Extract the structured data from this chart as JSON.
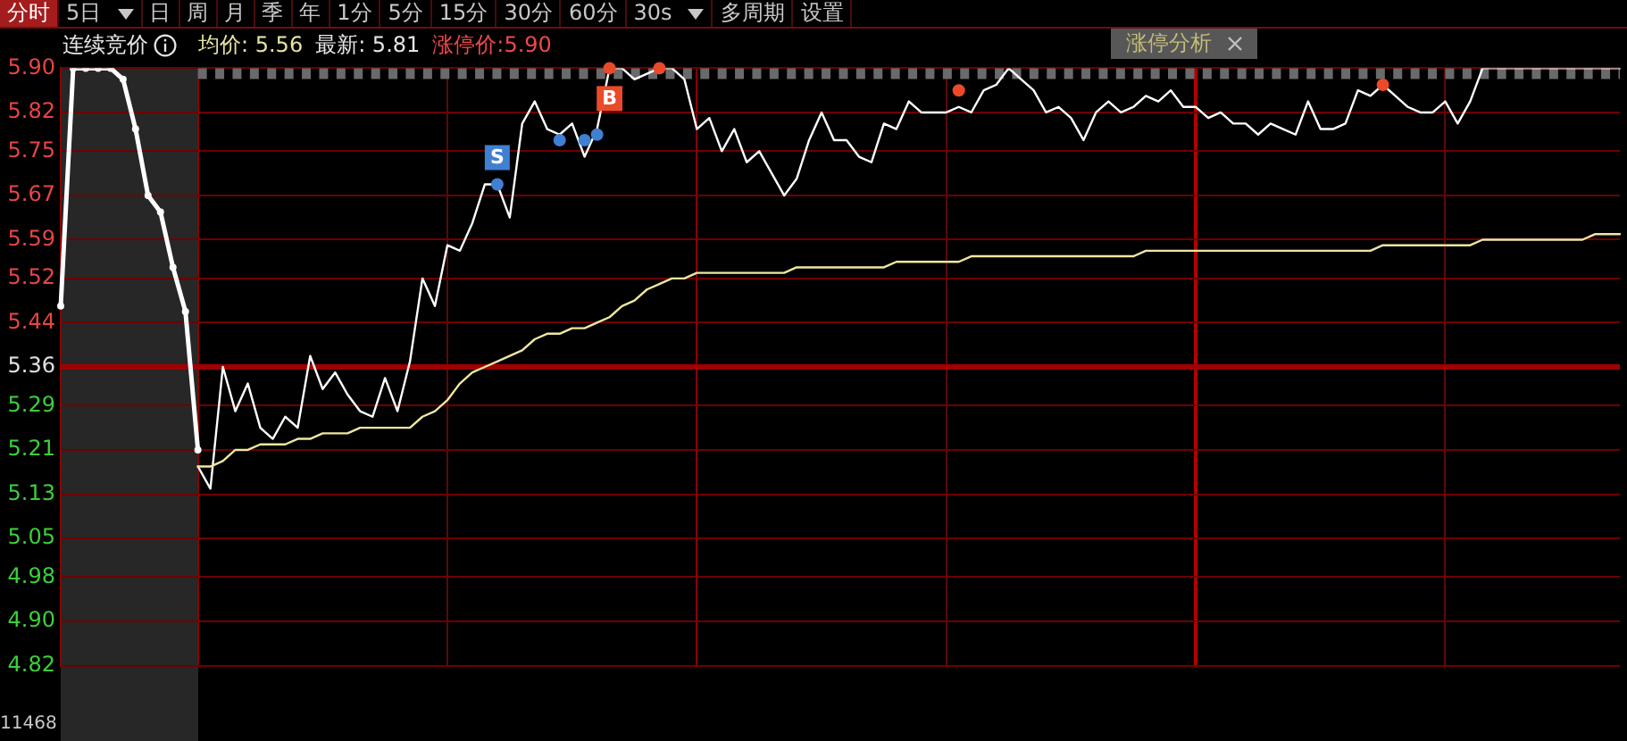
{
  "chart_data": {
    "type": "line",
    "categories": [
      null,
      null,
      null,
      null,
      null,
      null,
      null,
      null,
      null,
      null,
      null,
      null,
      null,
      null,
      null,
      null,
      null,
      null,
      null,
      null,
      null,
      null,
      null,
      null,
      null,
      null,
      null,
      null,
      null,
      null,
      null,
      null,
      null,
      null,
      null,
      null,
      null,
      null,
      null,
      null,
      null,
      null,
      null,
      null,
      null,
      null,
      null,
      null,
      null,
      null,
      null,
      null,
      null,
      null,
      null,
      null,
      null,
      null,
      null,
      null,
      null,
      null,
      null,
      null,
      null,
      null,
      null,
      null,
      null,
      null,
      null,
      null,
      null,
      null,
      null,
      null,
      null,
      null,
      null,
      null,
      null,
      null,
      null,
      null,
      null,
      null,
      null,
      null,
      null,
      null,
      null,
      null,
      null,
      null,
      null,
      null,
      null,
      null,
      null,
      null,
      null,
      null,
      null,
      null,
      null,
      null,
      null,
      null,
      null,
      null,
      null,
      null,
      null,
      null,
      null,
      null,
      null,
      null,
      null,
      null,
      null,
      null,
      null,
      null,
      null,
      null
    ],
    "series": [
      {
        "color": "#ffffff",
        "marker": "circle",
        "values": [
          5.47,
          5.9,
          5.9,
          5.9,
          5.9,
          5.88,
          5.79,
          5.67,
          5.64,
          5.54,
          5.46,
          5.21,
          null,
          null,
          null,
          null,
          null,
          null,
          null,
          null,
          null,
          null,
          null,
          null,
          null,
          null,
          null,
          null,
          null,
          null,
          null,
          null,
          null,
          null,
          null,
          null,
          null,
          null,
          null,
          null,
          null,
          null,
          null,
          null,
          null,
          null,
          null,
          null,
          null,
          null,
          null,
          null,
          null,
          null,
          null,
          null,
          null,
          null,
          null,
          null,
          null,
          null,
          null,
          null,
          null,
          null,
          null,
          null,
          null,
          null,
          null,
          null,
          null,
          null,
          null,
          null,
          null,
          null,
          null,
          null,
          null,
          null,
          null,
          null,
          null,
          null,
          null,
          null,
          null,
          null,
          null,
          null,
          null,
          null,
          null,
          null,
          null,
          null,
          null,
          null,
          null,
          null,
          null,
          null,
          null,
          null,
          null,
          null,
          null,
          null,
          null,
          null,
          null,
          null,
          null,
          null,
          null,
          null,
          null,
          null,
          null,
          null,
          null,
          null,
          null,
          null
        ]
      },
      {
        "color": "#ffffff",
        "values": [
          null,
          null,
          null,
          null,
          null,
          null,
          null,
          null,
          null,
          null,
          null,
          5.18,
          5.14,
          5.36,
          5.28,
          5.33,
          5.25,
          5.23,
          5.27,
          5.25,
          5.38,
          5.32,
          5.35,
          5.31,
          5.28,
          5.27,
          5.34,
          5.28,
          5.37,
          5.52,
          5.47,
          5.58,
          5.57,
          5.62,
          5.69,
          5.69,
          5.63,
          5.8,
          5.84,
          5.79,
          5.78,
          5.8,
          5.74,
          5.79,
          5.9,
          5.9,
          5.88,
          5.89,
          5.9,
          5.9,
          5.88,
          5.79,
          5.81,
          5.75,
          5.79,
          5.73,
          5.75,
          5.71,
          5.67,
          5.7,
          5.77,
          5.82,
          5.77,
          5.77,
          5.74,
          5.73,
          5.8,
          5.79,
          5.84,
          5.82,
          5.82,
          5.82,
          5.83,
          5.82,
          5.86,
          5.87,
          5.9,
          5.88,
          5.86,
          5.82,
          5.83,
          5.81,
          5.77,
          5.82,
          5.84,
          5.82,
          5.83,
          5.85,
          5.84,
          5.86,
          5.83,
          5.83,
          5.81,
          5.82,
          5.8,
          5.8,
          5.78,
          5.8,
          5.79,
          5.78,
          5.84,
          5.79,
          5.79,
          5.8,
          5.86,
          5.85,
          5.87,
          5.85,
          5.83,
          5.82,
          5.82,
          5.84,
          5.8,
          5.84,
          5.9,
          5.9,
          5.9,
          5.9,
          5.9,
          5.9,
          5.9,
          5.9,
          5.9,
          5.9,
          5.9,
          5.9
        ]
      },
      {
        "color": "#f0e6a0",
        "values": [
          null,
          null,
          null,
          null,
          null,
          null,
          null,
          null,
          null,
          null,
          null,
          5.18,
          5.18,
          5.19,
          5.21,
          5.21,
          5.22,
          5.22,
          5.22,
          5.23,
          5.23,
          5.24,
          5.24,
          5.24,
          5.25,
          5.25,
          5.25,
          5.25,
          5.25,
          5.27,
          5.28,
          5.3,
          5.33,
          5.35,
          5.36,
          5.37,
          5.38,
          5.39,
          5.41,
          5.42,
          5.42,
          5.43,
          5.43,
          5.44,
          5.45,
          5.47,
          5.48,
          5.5,
          5.51,
          5.52,
          5.52,
          5.53,
          5.53,
          5.53,
          5.53,
          5.53,
          5.53,
          5.53,
          5.53,
          5.54,
          5.54,
          5.54,
          5.54,
          5.54,
          5.54,
          5.54,
          5.54,
          5.55,
          5.55,
          5.55,
          5.55,
          5.55,
          5.55,
          5.56,
          5.56,
          5.56,
          5.56,
          5.56,
          5.56,
          5.56,
          5.56,
          5.56,
          5.56,
          5.56,
          5.56,
          5.56,
          5.56,
          5.57,
          5.57,
          5.57,
          5.57,
          5.57,
          5.57,
          5.57,
          5.57,
          5.57,
          5.57,
          5.57,
          5.57,
          5.57,
          5.57,
          5.57,
          5.57,
          5.57,
          5.57,
          5.57,
          5.58,
          5.58,
          5.58,
          5.58,
          5.58,
          5.58,
          5.58,
          5.58,
          5.59,
          5.59,
          5.59,
          5.59,
          5.59,
          5.59,
          5.59,
          5.59,
          5.59,
          5.6,
          5.6,
          5.6
        ]
      },
      {
        "type": "scatter",
        "color": "#3f80d2",
        "marker": "circle",
        "values": [
          null,
          null,
          null,
          null,
          null,
          null,
          null,
          null,
          null,
          null,
          null,
          null,
          null,
          null,
          null,
          null,
          null,
          null,
          null,
          null,
          null,
          null,
          null,
          null,
          null,
          null,
          null,
          null,
          null,
          null,
          null,
          null,
          null,
          null,
          null,
          5.69,
          null,
          null,
          null,
          null,
          5.77,
          null,
          5.77,
          5.78,
          null,
          null,
          null,
          null,
          null,
          null,
          null,
          null,
          null,
          null,
          null,
          null,
          null,
          null,
          null,
          null,
          null,
          null,
          null,
          null,
          null,
          null,
          null,
          null,
          null,
          null,
          null,
          null,
          null,
          null,
          null,
          null,
          null,
          null,
          null,
          null,
          null,
          null,
          null,
          null,
          null,
          null,
          null,
          null,
          null,
          null,
          null,
          null,
          null,
          null,
          null,
          null,
          null,
          null,
          null,
          null,
          null,
          null,
          null,
          null,
          null,
          null,
          null,
          null,
          null,
          null,
          null,
          null,
          null,
          null,
          null,
          null,
          null,
          null,
          null,
          null,
          null,
          null,
          null,
          null,
          null,
          null
        ],
        "value_labels": [
          null,
          null,
          null,
          null,
          null,
          null,
          null,
          null,
          null,
          null,
          null,
          null,
          null,
          null,
          null,
          null,
          null,
          null,
          null,
          null,
          null,
          null,
          null,
          null,
          null,
          null,
          null,
          null,
          null,
          null,
          null,
          null,
          null,
          null,
          null,
          "S",
          null,
          null,
          null,
          null,
          null,
          null,
          null,
          null,
          null,
          null,
          null,
          null,
          null,
          null,
          null,
          null,
          null,
          null,
          null,
          null,
          null,
          null,
          null,
          null,
          null,
          null,
          null,
          null,
          null,
          null,
          null,
          null,
          null,
          null,
          null,
          null,
          null,
          null,
          null,
          null,
          null,
          null,
          null,
          null,
          null,
          null,
          null,
          null,
          null,
          null,
          null,
          null,
          null,
          null,
          null,
          null,
          null,
          null,
          null,
          null,
          null,
          null,
          null,
          null,
          null,
          null,
          null,
          null,
          null,
          null,
          null,
          null,
          null,
          null,
          null,
          null,
          null,
          null,
          null,
          null,
          null,
          null,
          null,
          null,
          null,
          null,
          null,
          null,
          null,
          null
        ]
      },
      {
        "type": "scatter",
        "color": "#ea4a2a",
        "marker": "circle",
        "values": [
          null,
          null,
          null,
          null,
          null,
          null,
          null,
          null,
          null,
          null,
          null,
          null,
          null,
          null,
          null,
          null,
          null,
          null,
          null,
          null,
          null,
          null,
          null,
          null,
          null,
          null,
          null,
          null,
          null,
          null,
          null,
          null,
          null,
          null,
          null,
          null,
          null,
          null,
          null,
          null,
          null,
          null,
          null,
          null,
          5.9,
          null,
          null,
          null,
          5.9,
          null,
          null,
          null,
          null,
          null,
          null,
          null,
          null,
          null,
          null,
          null,
          null,
          null,
          null,
          null,
          null,
          null,
          null,
          null,
          null,
          null,
          null,
          null,
          5.86,
          null,
          null,
          null,
          null,
          null,
          null,
          null,
          null,
          null,
          null,
          null,
          null,
          null,
          null,
          null,
          null,
          null,
          null,
          null,
          null,
          null,
          null,
          null,
          null,
          null,
          null,
          null,
          null,
          null,
          null,
          null,
          null,
          null,
          5.87,
          null,
          null,
          null,
          null,
          null,
          null,
          null,
          null,
          null,
          null,
          null,
          null,
          null,
          null,
          null,
          null,
          null,
          null,
          null
        ],
        "value_labels": [
          null,
          null,
          null,
          null,
          null,
          null,
          null,
          null,
          null,
          null,
          null,
          null,
          null,
          null,
          null,
          null,
          null,
          null,
          null,
          null,
          null,
          null,
          null,
          null,
          null,
          null,
          null,
          null,
          null,
          null,
          null,
          null,
          null,
          null,
          null,
          null,
          null,
          null,
          null,
          null,
          null,
          null,
          null,
          null,
          "B",
          null,
          null,
          null,
          null,
          null,
          null,
          null,
          null,
          null,
          null,
          null,
          null,
          null,
          null,
          null,
          null,
          null,
          null,
          null,
          null,
          null,
          null,
          null,
          null,
          null,
          null,
          null,
          null,
          null,
          null,
          null,
          null,
          null,
          null,
          null,
          null,
          null,
          null,
          null,
          null,
          null,
          null,
          null,
          null,
          null,
          null,
          null,
          null,
          null,
          null,
          null,
          null,
          null,
          null,
          null,
          null,
          null,
          null,
          null,
          null,
          null,
          null,
          null,
          null,
          null,
          null,
          null,
          null,
          null,
          null,
          null,
          null,
          null,
          null,
          null,
          null,
          null,
          null,
          null,
          null,
          null
        ]
      }
    ],
    "ylim": [
      4.82,
      5.9
    ],
    "yticks": [
      {
        "value": 5.9,
        "label": "5.90"
      },
      5.82,
      5.75,
      5.67,
      5.59,
      5.52,
      5.44,
      5.36,
      5.29,
      5.21,
      5.13,
      5.05,
      4.98,
      {
        "value": 4.9,
        "label": "4.90"
      },
      4.82
    ],
    "grid": true,
    "tick_labels": "y",
    "ref_lines": [
      {
        "axis": "y",
        "value": 5.36,
        "color": "#a00000"
      },
      {
        "axis": "y",
        "value": 5.89,
        "color": "#6a6a6a",
        "line_style": "dotted"
      }
    ],
    "annotations": [
      "分时",
      "5日",
      "日",
      "周",
      "月",
      "季",
      "年",
      "1分",
      "5分",
      "15分",
      "30分",
      "60分",
      "30s",
      "多周期",
      "设置",
      "连续竞价",
      "均价: 5.56",
      "最新: 5.81",
      "涨停价:5.90",
      "涨停分析",
      "11468"
    ]
  }
}
